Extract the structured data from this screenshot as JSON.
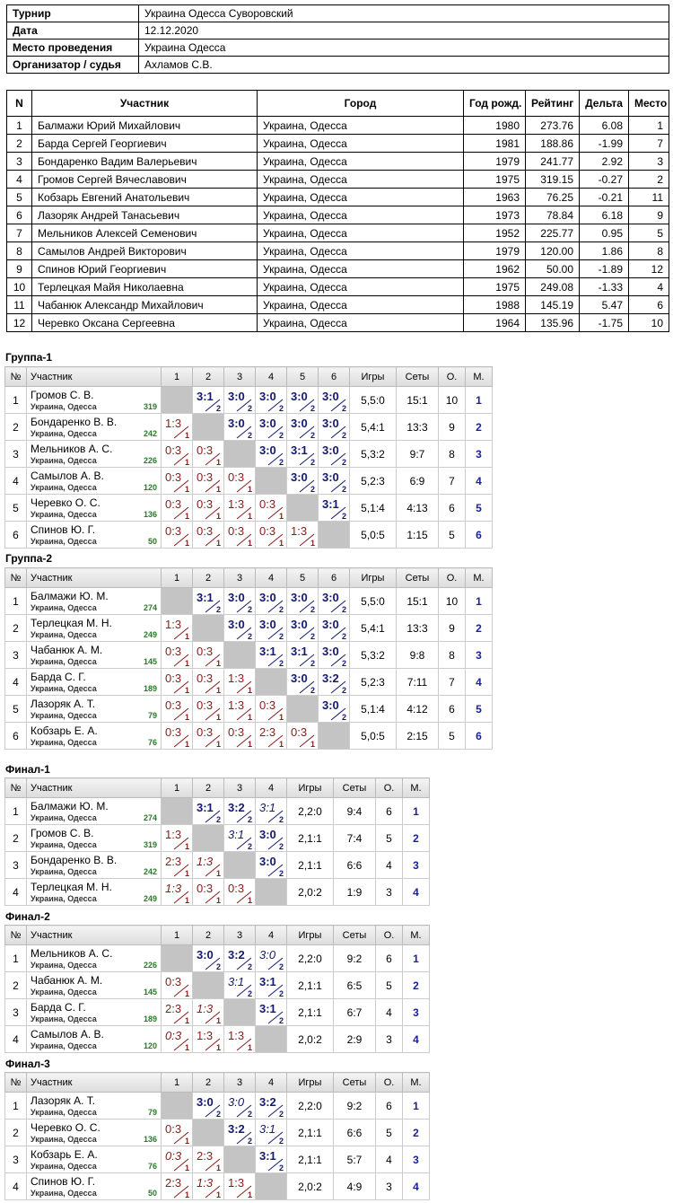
{
  "info": [
    [
      "Турнир",
      "Украина Одесса Суворовский"
    ],
    [
      "Дата",
      "12.12.2020"
    ],
    [
      "Место проведения",
      "Украина Одесса"
    ],
    [
      "Организатор / судья",
      "Ахламов С.В."
    ]
  ],
  "participants": {
    "header": [
      "N",
      "Участник",
      "Город",
      "Год рожд.",
      "Рейтинг",
      "Дельта",
      "Место"
    ],
    "rows": [
      [
        "1",
        "Балмажи Юрий Михайлович",
        "Украина, Одесса",
        "1980",
        "273.76",
        "6.08",
        "1"
      ],
      [
        "2",
        "Барда Сергей Георгиевич",
        "Украина, Одесса",
        "1981",
        "188.86",
        "-1.99",
        "7"
      ],
      [
        "3",
        "Бондаренко Вадим Валерьевич",
        "Украина, Одесса",
        "1979",
        "241.77",
        "2.92",
        "3"
      ],
      [
        "4",
        "Громов Сергей Вячеславович",
        "Украина, Одесса",
        "1975",
        "319.15",
        "-0.27",
        "2"
      ],
      [
        "5",
        "Кобзарь Евгений Анатольевич",
        "Украина, Одесса",
        "1963",
        "76.25",
        "-0.21",
        "11"
      ],
      [
        "6",
        "Лазоряк Андрей Танасьевич",
        "Украина, Одесса",
        "1973",
        "78.84",
        "6.18",
        "9"
      ],
      [
        "7",
        "Мельников Алексей Семенович",
        "Украина, Одесса",
        "1952",
        "225.77",
        "0.95",
        "5"
      ],
      [
        "8",
        "Самылов Андрей Викторович",
        "Украина, Одесса",
        "1979",
        "120.00",
        "1.86",
        "8"
      ],
      [
        "9",
        "Спинов Юрий Георгиевич",
        "Украина, Одесса",
        "1962",
        "50.00",
        "-1.89",
        "12"
      ],
      [
        "10",
        "Терлецкая Майя Николаевна",
        "Украина, Одесса",
        "1975",
        "249.08",
        "-1.33",
        "4"
      ],
      [
        "11",
        "Чабанюк Александр Михайлович",
        "Украина, Одесса",
        "1988",
        "145.19",
        "5.47",
        "6"
      ],
      [
        "12",
        "Черевко Оксана Сергеевна",
        "Украина, Одесса",
        "1964",
        "135.96",
        "-1.75",
        "10"
      ]
    ]
  },
  "groups": [
    {
      "title": "Группа-1",
      "header": [
        "№",
        "Участник",
        "1",
        "2",
        "3",
        "4",
        "5",
        "6",
        "Игры",
        "Сеты",
        "О.",
        "М."
      ],
      "rows": [
        {
          "n": "1",
          "name": "Громов С. В.",
          "city": "Украина, Одесса",
          "rating": "319",
          "results": [
            null,
            {
              "s": "3:1",
              "p": "2"
            },
            {
              "s": "3:0",
              "p": "2"
            },
            {
              "s": "3:0",
              "p": "2"
            },
            {
              "s": "3:0",
              "p": "2"
            },
            {
              "s": "3:0",
              "p": "2"
            }
          ],
          "games": "5,5:0",
          "sets": "15:1",
          "points": "10",
          "place": "1"
        },
        {
          "n": "2",
          "name": "Бондаренко В. В.",
          "city": "Украина, Одесса",
          "rating": "242",
          "results": [
            {
              "s": "1:3",
              "p": "1"
            },
            null,
            {
              "s": "3:0",
              "p": "2"
            },
            {
              "s": "3:0",
              "p": "2"
            },
            {
              "s": "3:0",
              "p": "2"
            },
            {
              "s": "3:0",
              "p": "2"
            }
          ],
          "games": "5,4:1",
          "sets": "13:3",
          "points": "9",
          "place": "2"
        },
        {
          "n": "3",
          "name": "Мельников А. С.",
          "city": "Украина, Одесса",
          "rating": "226",
          "results": [
            {
              "s": "0:3",
              "p": "1"
            },
            {
              "s": "0:3",
              "p": "1"
            },
            null,
            {
              "s": "3:0",
              "p": "2"
            },
            {
              "s": "3:1",
              "p": "2"
            },
            {
              "s": "3:0",
              "p": "2"
            }
          ],
          "games": "5,3:2",
          "sets": "9:7",
          "points": "8",
          "place": "3"
        },
        {
          "n": "4",
          "name": "Самылов А. В.",
          "city": "Украина, Одесса",
          "rating": "120",
          "results": [
            {
              "s": "0:3",
              "p": "1"
            },
            {
              "s": "0:3",
              "p": "1"
            },
            {
              "s": "0:3",
              "p": "1"
            },
            null,
            {
              "s": "3:0",
              "p": "2"
            },
            {
              "s": "3:0",
              "p": "2"
            }
          ],
          "games": "5,2:3",
          "sets": "6:9",
          "points": "7",
          "place": "4"
        },
        {
          "n": "5",
          "name": "Черевко О. С.",
          "city": "Украина, Одесса",
          "rating": "136",
          "results": [
            {
              "s": "0:3",
              "p": "1"
            },
            {
              "s": "0:3",
              "p": "1"
            },
            {
              "s": "1:3",
              "p": "1"
            },
            {
              "s": "0:3",
              "p": "1"
            },
            null,
            {
              "s": "3:1",
              "p": "2"
            }
          ],
          "games": "5,1:4",
          "sets": "4:13",
          "points": "6",
          "place": "5"
        },
        {
          "n": "6",
          "name": "Спинов Ю. Г.",
          "city": "Украина, Одесса",
          "rating": "50",
          "results": [
            {
              "s": "0:3",
              "p": "1"
            },
            {
              "s": "0:3",
              "p": "1"
            },
            {
              "s": "0:3",
              "p": "1"
            },
            {
              "s": "0:3",
              "p": "1"
            },
            {
              "s": "1:3",
              "p": "1"
            },
            null
          ],
          "games": "5,0:5",
          "sets": "1:15",
          "points": "5",
          "place": "6"
        }
      ]
    },
    {
      "title": "Группа-2",
      "header": [
        "№",
        "Участник",
        "1",
        "2",
        "3",
        "4",
        "5",
        "6",
        "Игры",
        "Сеты",
        "О.",
        "М."
      ],
      "rows": [
        {
          "n": "1",
          "name": "Балмажи Ю. М.",
          "city": "Украина, Одесса",
          "rating": "274",
          "results": [
            null,
            {
              "s": "3:1",
              "p": "2"
            },
            {
              "s": "3:0",
              "p": "2"
            },
            {
              "s": "3:0",
              "p": "2"
            },
            {
              "s": "3:0",
              "p": "2"
            },
            {
              "s": "3:0",
              "p": "2"
            }
          ],
          "games": "5,5:0",
          "sets": "15:1",
          "points": "10",
          "place": "1"
        },
        {
          "n": "2",
          "name": "Терлецкая М. Н.",
          "city": "Украина, Одесса",
          "rating": "249",
          "results": [
            {
              "s": "1:3",
              "p": "1"
            },
            null,
            {
              "s": "3:0",
              "p": "2"
            },
            {
              "s": "3:0",
              "p": "2"
            },
            {
              "s": "3:0",
              "p": "2"
            },
            {
              "s": "3:0",
              "p": "2"
            }
          ],
          "games": "5,4:1",
          "sets": "13:3",
          "points": "9",
          "place": "2"
        },
        {
          "n": "3",
          "name": "Чабанюк А. М.",
          "city": "Украина, Одесса",
          "rating": "145",
          "results": [
            {
              "s": "0:3",
              "p": "1"
            },
            {
              "s": "0:3",
              "p": "1"
            },
            null,
            {
              "s": "3:1",
              "p": "2"
            },
            {
              "s": "3:1",
              "p": "2"
            },
            {
              "s": "3:0",
              "p": "2"
            }
          ],
          "games": "5,3:2",
          "sets": "9:8",
          "points": "8",
          "place": "3"
        },
        {
          "n": "4",
          "name": "Барда С. Г.",
          "city": "Украина, Одесса",
          "rating": "189",
          "results": [
            {
              "s": "0:3",
              "p": "1"
            },
            {
              "s": "0:3",
              "p": "1"
            },
            {
              "s": "1:3",
              "p": "1"
            },
            null,
            {
              "s": "3:0",
              "p": "2"
            },
            {
              "s": "3:2",
              "p": "2"
            }
          ],
          "games": "5,2:3",
          "sets": "7:11",
          "points": "7",
          "place": "4"
        },
        {
          "n": "5",
          "name": "Лазоряк А. Т.",
          "city": "Украина, Одесса",
          "rating": "79",
          "results": [
            {
              "s": "0:3",
              "p": "1"
            },
            {
              "s": "0:3",
              "p": "1"
            },
            {
              "s": "1:3",
              "p": "1"
            },
            {
              "s": "0:3",
              "p": "1"
            },
            null,
            {
              "s": "3:0",
              "p": "2"
            }
          ],
          "games": "5,1:4",
          "sets": "4:12",
          "points": "6",
          "place": "5"
        },
        {
          "n": "6",
          "name": "Кобзарь Е. А.",
          "city": "Украина, Одесса",
          "rating": "76",
          "results": [
            {
              "s": "0:3",
              "p": "1"
            },
            {
              "s": "0:3",
              "p": "1"
            },
            {
              "s": "0:3",
              "p": "1"
            },
            {
              "s": "2:3",
              "p": "1"
            },
            {
              "s": "0:3",
              "p": "1"
            },
            null
          ],
          "games": "5,0:5",
          "sets": "2:15",
          "points": "5",
          "place": "6"
        }
      ]
    },
    {
      "title": "Финал-1",
      "header": [
        "№",
        "Участник",
        "1",
        "2",
        "3",
        "4",
        "Игры",
        "Сеты",
        "О.",
        "М."
      ],
      "rows": [
        {
          "n": "1",
          "name": "Балмажи Ю. М.",
          "city": "Украина, Одесса",
          "rating": "274",
          "results": [
            null,
            {
              "s": "3:1",
              "p": "2"
            },
            {
              "s": "3:2",
              "p": "2"
            },
            {
              "s": "3:1",
              "p": "2",
              "italic": true
            }
          ],
          "games": "2,2:0",
          "sets": "9:4",
          "points": "6",
          "place": "1"
        },
        {
          "n": "2",
          "name": "Громов С. В.",
          "city": "Украина, Одесса",
          "rating": "319",
          "results": [
            {
              "s": "1:3",
              "p": "1"
            },
            null,
            {
              "s": "3:1",
              "p": "2",
              "italic": true
            },
            {
              "s": "3:0",
              "p": "2"
            }
          ],
          "games": "2,1:1",
          "sets": "7:4",
          "points": "5",
          "place": "2"
        },
        {
          "n": "3",
          "name": "Бондаренко В. В.",
          "city": "Украина, Одесса",
          "rating": "242",
          "results": [
            {
              "s": "2:3",
              "p": "1"
            },
            {
              "s": "1:3",
              "p": "1",
              "italic": true
            },
            null,
            {
              "s": "3:0",
              "p": "2"
            }
          ],
          "games": "2,1:1",
          "sets": "6:6",
          "points": "4",
          "place": "3"
        },
        {
          "n": "4",
          "name": "Терлецкая М. Н.",
          "city": "Украина, Одесса",
          "rating": "249",
          "results": [
            {
              "s": "1:3",
              "p": "1",
              "italic": true
            },
            {
              "s": "0:3",
              "p": "1"
            },
            {
              "s": "0:3",
              "p": "1"
            },
            null
          ],
          "games": "2,0:2",
          "sets": "1:9",
          "points": "3",
          "place": "4"
        }
      ]
    },
    {
      "title": "Финал-2",
      "header": [
        "№",
        "Участник",
        "1",
        "2",
        "3",
        "4",
        "Игры",
        "Сеты",
        "О.",
        "М."
      ],
      "rows": [
        {
          "n": "1",
          "name": "Мельников А. С.",
          "city": "Украина, Одесса",
          "rating": "226",
          "results": [
            null,
            {
              "s": "3:0",
              "p": "2"
            },
            {
              "s": "3:2",
              "p": "2"
            },
            {
              "s": "3:0",
              "p": "2",
              "italic": true
            }
          ],
          "games": "2,2:0",
          "sets": "9:2",
          "points": "6",
          "place": "1"
        },
        {
          "n": "2",
          "name": "Чабанюк А. М.",
          "city": "Украина, Одесса",
          "rating": "145",
          "results": [
            {
              "s": "0:3",
              "p": "1"
            },
            null,
            {
              "s": "3:1",
              "p": "2",
              "italic": true
            },
            {
              "s": "3:1",
              "p": "2"
            }
          ],
          "games": "2,1:1",
          "sets": "6:5",
          "points": "5",
          "place": "2"
        },
        {
          "n": "3",
          "name": "Барда С. Г.",
          "city": "Украина, Одесса",
          "rating": "189",
          "results": [
            {
              "s": "2:3",
              "p": "1"
            },
            {
              "s": "1:3",
              "p": "1",
              "italic": true
            },
            null,
            {
              "s": "3:1",
              "p": "2"
            }
          ],
          "games": "2,1:1",
          "sets": "6:7",
          "points": "4",
          "place": "3"
        },
        {
          "n": "4",
          "name": "Самылов А. В.",
          "city": "Украина, Одесса",
          "rating": "120",
          "results": [
            {
              "s": "0:3",
              "p": "1",
              "italic": true
            },
            {
              "s": "1:3",
              "p": "1"
            },
            {
              "s": "1:3",
              "p": "1"
            },
            null
          ],
          "games": "2,0:2",
          "sets": "2:9",
          "points": "3",
          "place": "4"
        }
      ]
    },
    {
      "title": "Финал-3",
      "header": [
        "№",
        "Участник",
        "1",
        "2",
        "3",
        "4",
        "Игры",
        "Сеты",
        "О.",
        "М."
      ],
      "rows": [
        {
          "n": "1",
          "name": "Лазоряк А. Т.",
          "city": "Украина, Одесса",
          "rating": "79",
          "results": [
            null,
            {
              "s": "3:0",
              "p": "2"
            },
            {
              "s": "3:0",
              "p": "2",
              "italic": true
            },
            {
              "s": "3:2",
              "p": "2"
            }
          ],
          "games": "2,2:0",
          "sets": "9:2",
          "points": "6",
          "place": "1"
        },
        {
          "n": "2",
          "name": "Черевко О. С.",
          "city": "Украина, Одесса",
          "rating": "136",
          "results": [
            {
              "s": "0:3",
              "p": "1"
            },
            null,
            {
              "s": "3:2",
              "p": "2"
            },
            {
              "s": "3:1",
              "p": "2",
              "italic": true
            }
          ],
          "games": "2,1:1",
          "sets": "6:6",
          "points": "5",
          "place": "2"
        },
        {
          "n": "3",
          "name": "Кобзарь Е. А.",
          "city": "Украина, Одесса",
          "rating": "76",
          "results": [
            {
              "s": "0:3",
              "p": "1",
              "italic": true
            },
            {
              "s": "2:3",
              "p": "1"
            },
            null,
            {
              "s": "3:1",
              "p": "2"
            }
          ],
          "games": "2,1:1",
          "sets": "5:7",
          "points": "4",
          "place": "3"
        },
        {
          "n": "4",
          "name": "Спинов Ю. Г.",
          "city": "Украина, Одесса",
          "rating": "50",
          "results": [
            {
              "s": "2:3",
              "p": "1"
            },
            {
              "s": "1:3",
              "p": "1",
              "italic": true
            },
            {
              "s": "1:3",
              "p": "1"
            },
            null
          ],
          "games": "2,0:2",
          "sets": "4:9",
          "points": "3",
          "place": "4"
        }
      ]
    }
  ]
}
